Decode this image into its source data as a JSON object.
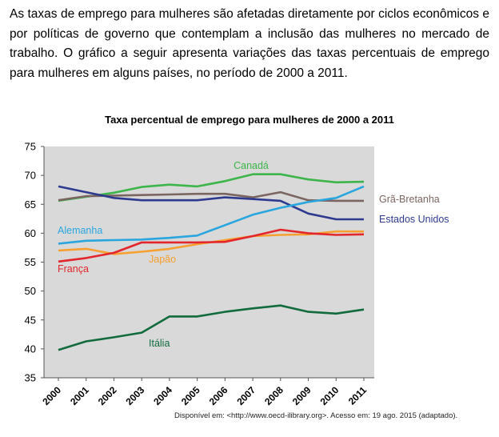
{
  "intro_text": "As taxas de emprego para mulheres são afetadas diretamente por ciclos econômicos e por políticas de governo que contemplam a inclusão das mulheres no mercado de trabalho. O gráfico a seguir apresenta variações das taxas percentuais de emprego para mulheres em alguns países, no período de 2000 a 2011.",
  "source_text": "Disponível em: <http://www.oecd-ilibrary.org>. Acesso em: 19 ago. 2015 (adaptado).",
  "chart_data": {
    "type": "line",
    "title": "Taxa percentual de emprego para mulheres de 2000 a 2011",
    "xlabel": "",
    "ylabel": "",
    "ylim": [
      35,
      75
    ],
    "yticks": [
      "75",
      "70",
      "65",
      "60",
      "55",
      "50",
      "45",
      "40",
      "35"
    ],
    "x": [
      "2000",
      "2001",
      "2002",
      "2003",
      "2004",
      "2005",
      "2006",
      "2007",
      "2008",
      "2009",
      "2010",
      "2011"
    ],
    "grid": false,
    "series": [
      {
        "name": "Canadá",
        "color": "#3cb54a",
        "values": [
          65.6,
          66.3,
          67.0,
          68.0,
          68.4,
          68.1,
          69.0,
          70.2,
          70.2,
          69.3,
          68.8,
          68.9
        ]
      },
      {
        "name": "Grã-Bretanha",
        "color": "#7a6560",
        "values": [
          65.7,
          66.4,
          66.5,
          66.6,
          66.7,
          66.8,
          66.8,
          66.2,
          67.1,
          65.7,
          65.6,
          65.6
        ]
      },
      {
        "name": "Estados Unidos",
        "color": "#2e3a8f",
        "values": [
          68.1,
          67.1,
          66.1,
          65.7,
          65.7,
          65.7,
          66.2,
          65.9,
          65.6,
          63.4,
          62.4,
          62.4
        ]
      },
      {
        "name": "Alemanha",
        "color": "#2aa6df",
        "values": [
          58.2,
          58.7,
          58.8,
          58.9,
          59.2,
          59.6,
          61.4,
          63.2,
          64.4,
          65.4,
          66.1,
          68.1
        ]
      },
      {
        "name": "Japão",
        "color": "#f7a030",
        "values": [
          57.0,
          57.3,
          56.4,
          56.8,
          57.3,
          58.1,
          58.8,
          59.5,
          59.7,
          59.8,
          60.3,
          60.3
        ]
      },
      {
        "name": "França",
        "color": "#e3262b",
        "values": [
          55.1,
          55.7,
          56.6,
          58.4,
          58.4,
          58.4,
          58.5,
          59.5,
          60.6,
          60.0,
          59.7,
          59.8
        ]
      },
      {
        "name": "Itália",
        "color": "#126b3c",
        "values": [
          39.8,
          41.3,
          42.0,
          42.8,
          45.6,
          45.6,
          46.4,
          47.0,
          47.5,
          46.4,
          46.1,
          46.8
        ]
      }
    ]
  }
}
